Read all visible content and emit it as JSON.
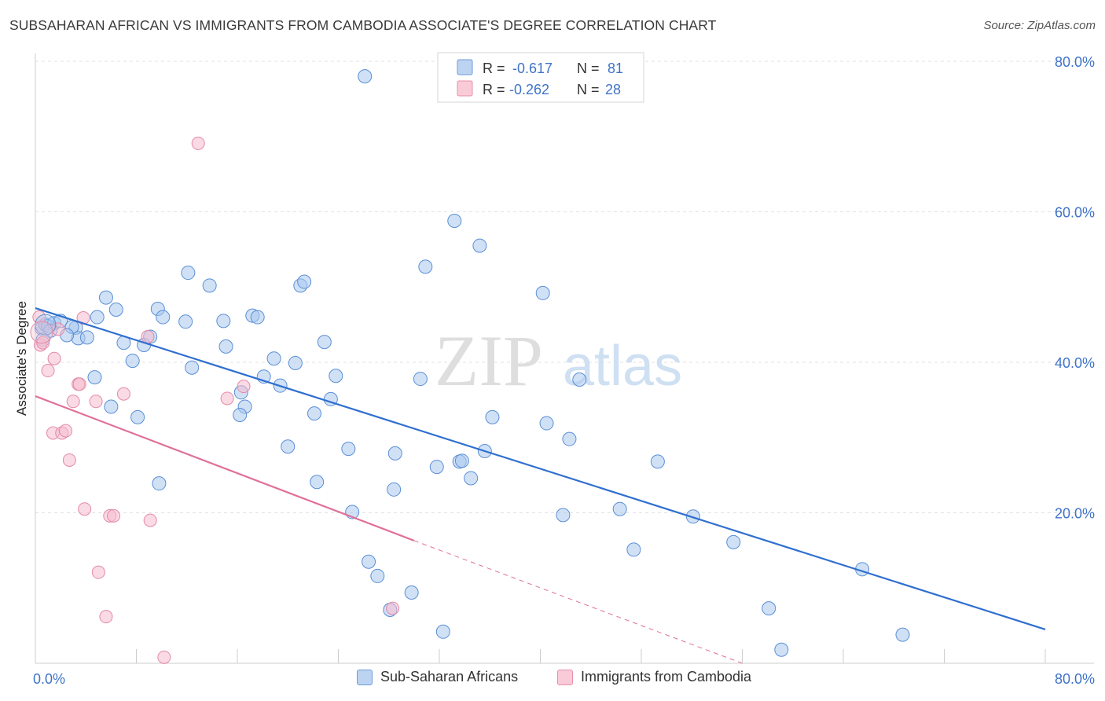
{
  "title": "SUBSAHARAN AFRICAN VS IMMIGRANTS FROM CAMBODIA ASSOCIATE'S DEGREE CORRELATION CHART",
  "source": "Source: ZipAtlas.com",
  "watermark": {
    "zip": "ZIP",
    "atlas": "atlas"
  },
  "colors": {
    "blue_fill": "#a9c8ee",
    "blue_stroke": "#5b8fd6",
    "blue_line": "#2f6fcf",
    "pink_fill": "#f6bccd",
    "pink_stroke": "#e38aa8",
    "pink_line": "#e0709a",
    "axis_text": "#3f73c9",
    "grid": "#e2e2e2"
  },
  "legend": {
    "series": [
      {
        "r_label": "R =",
        "r_value": "-0.617",
        "n_label": "N =",
        "n_value": "81"
      },
      {
        "r_label": "R =",
        "r_value": "-0.262",
        "n_label": "N =",
        "n_value": "28"
      }
    ]
  },
  "chart_data": {
    "type": "scatter",
    "title": "SUBSAHARAN AFRICAN VS IMMIGRANTS FROM CAMBODIA ASSOCIATE'S DEGREE CORRELATION CHART",
    "xlabel": "",
    "ylabel": "Associate's Degree",
    "xlim": [
      0,
      80
    ],
    "ylim": [
      0,
      80
    ],
    "x_tick_labels": [
      "0.0%",
      "80.0%"
    ],
    "y_tick_labels": [
      "20.0%",
      "40.0%",
      "60.0%",
      "80.0%"
    ],
    "y_ticks": [
      20,
      40,
      60,
      80
    ],
    "x_ticks": [
      0,
      8,
      16,
      24,
      32,
      40,
      48,
      56,
      64,
      72,
      80
    ],
    "grid": true,
    "legend_position": "top-center",
    "series": [
      {
        "name": "Sub-Saharan Africans",
        "r": -0.617,
        "n": 81,
        "trend": {
          "x0": 0,
          "y0": 47.2,
          "x1": 80,
          "y1": 4.5,
          "dashed_from": null
        },
        "points": [
          [
            0.5,
            44.5
          ],
          [
            0.8,
            45
          ],
          [
            1,
            44.8
          ],
          [
            1.5,
            45.2
          ],
          [
            2,
            45.5
          ],
          [
            1.2,
            44.2
          ],
          [
            0.6,
            43
          ],
          [
            3.2,
            44.6
          ],
          [
            3.4,
            43.2
          ],
          [
            4.1,
            43.3
          ],
          [
            4.9,
            46
          ],
          [
            5.6,
            48.6
          ],
          [
            6.4,
            47
          ],
          [
            7,
            42.6
          ],
          [
            7.7,
            40.2
          ],
          [
            8.6,
            42.3
          ],
          [
            9.1,
            43.4
          ],
          [
            9.7,
            47.1
          ],
          [
            10.1,
            46
          ],
          [
            11.9,
            45.4
          ],
          [
            12.1,
            51.9
          ],
          [
            13.8,
            50.2
          ],
          [
            15.1,
            42.1
          ],
          [
            16.3,
            36
          ],
          [
            16.6,
            34.1
          ],
          [
            17.2,
            46.2
          ],
          [
            17.6,
            46
          ],
          [
            18.1,
            38.1
          ],
          [
            18.9,
            40.5
          ],
          [
            19.4,
            36.9
          ],
          [
            20,
            28.8
          ],
          [
            20.6,
            39.9
          ],
          [
            21,
            50.2
          ],
          [
            21.3,
            50.7
          ],
          [
            22.1,
            33.2
          ],
          [
            22.3,
            24.1
          ],
          [
            22.9,
            42.7
          ],
          [
            23.4,
            35.1
          ],
          [
            23.8,
            38.2
          ],
          [
            24.8,
            28.5
          ],
          [
            25.1,
            20.1
          ],
          [
            26.4,
            13.5
          ],
          [
            27.1,
            11.6
          ],
          [
            26.1,
            78
          ],
          [
            28.1,
            7.1
          ],
          [
            28.4,
            23.1
          ],
          [
            28.5,
            27.9
          ],
          [
            29.8,
            9.4
          ],
          [
            30.5,
            37.8
          ],
          [
            30.9,
            52.7
          ],
          [
            31.8,
            26.1
          ],
          [
            32.3,
            4.2
          ],
          [
            33.2,
            58.8
          ],
          [
            33.6,
            26.8
          ],
          [
            33.8,
            26.9
          ],
          [
            34.5,
            24.6
          ],
          [
            35.2,
            55.5
          ],
          [
            35.6,
            28.2
          ],
          [
            36.2,
            32.7
          ],
          [
            40.2,
            49.2
          ],
          [
            40.5,
            31.9
          ],
          [
            41.8,
            19.7
          ],
          [
            42.3,
            29.8
          ],
          [
            43.1,
            37.7
          ],
          [
            46.3,
            20.5
          ],
          [
            47.4,
            15.1
          ],
          [
            49.3,
            26.8
          ],
          [
            52.1,
            19.5
          ],
          [
            55.3,
            16.1
          ],
          [
            58.1,
            7.3
          ],
          [
            59.1,
            1.8
          ],
          [
            65.5,
            12.5
          ],
          [
            68.7,
            3.8
          ],
          [
            2.9,
            44.7
          ],
          [
            2.5,
            43.6
          ],
          [
            4.7,
            38
          ],
          [
            6.0,
            34.1
          ],
          [
            8.1,
            32.7
          ],
          [
            12.4,
            39.3
          ],
          [
            9.8,
            23.9
          ],
          [
            14.9,
            45.5
          ],
          [
            16.2,
            33.0
          ]
        ]
      },
      {
        "name": "Immigrants from Cambodia",
        "r": -0.262,
        "n": 28,
        "trend": {
          "x0": 0,
          "y0": 35.5,
          "x1": 30,
          "y1": 16.3,
          "dashed_from": 30,
          "dashed_to_x": 56,
          "dashed_to_y": 0
        },
        "points": [
          [
            0.3,
            46
          ],
          [
            0.4,
            42.3
          ],
          [
            0.6,
            42.6
          ],
          [
            1.0,
            38.9
          ],
          [
            1.5,
            40.5
          ],
          [
            1.8,
            44.4
          ],
          [
            1.4,
            30.6
          ],
          [
            2.1,
            30.6
          ],
          [
            2.4,
            30.9
          ],
          [
            2.7,
            27
          ],
          [
            3.0,
            34.8
          ],
          [
            3.4,
            37.1
          ],
          [
            3.5,
            37.1
          ],
          [
            3.9,
            20.5
          ],
          [
            4.8,
            34.8
          ],
          [
            5.0,
            12.1
          ],
          [
            5.6,
            6.2
          ],
          [
            5.9,
            19.6
          ],
          [
            6.2,
            19.6
          ],
          [
            7.0,
            35.8
          ],
          [
            8.9,
            43.4
          ],
          [
            9.1,
            19
          ],
          [
            10.2,
            0.8
          ],
          [
            12.9,
            69.1
          ],
          [
            15.2,
            35.2
          ],
          [
            16.5,
            36.8
          ],
          [
            28.3,
            7.3
          ],
          [
            3.8,
            45.9
          ]
        ]
      }
    ]
  }
}
